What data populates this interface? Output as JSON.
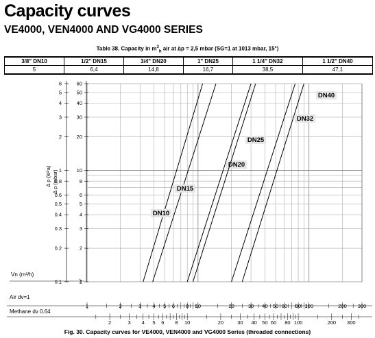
{
  "header": {
    "title": "Capacity curves",
    "subtitle": "VE4000, VEN4000 AND VG4000 SERIES"
  },
  "table": {
    "caption_prefix": "Table 38. Capacity in m",
    "caption_sup": "3",
    "caption_sub": "h",
    "caption_rest": " air at ∆p = 2,5 mbar (SG=1 at 1013 mbar, 15°)",
    "headers": [
      "3/8\" DN10",
      "1/2\" DN15",
      "3/4\" DN20",
      "1\" DN25",
      "1 1/4\" DN32",
      "1 1/2\" DN40"
    ],
    "values": [
      "5",
      "6,4",
      "14,8",
      "16,7",
      "38,5",
      "47,1"
    ]
  },
  "chart_data": {
    "type": "line",
    "x_scale": "log",
    "y_scale": "log",
    "xlim": [
      1,
      300
    ],
    "ylim": [
      0.1,
      6
    ],
    "ylabel_outer": "∆ p (kPa)",
    "ylabel_inner": "∆ p (mbar)",
    "xlabel": "Vn (m³/h)",
    "y_ticks_kpa": [
      "6",
      "5",
      "4",
      "3",
      "2",
      "1",
      "0.8",
      "0.6",
      "0.5",
      "0.4",
      "0.3",
      "0.2",
      "0.1"
    ],
    "y_ticks_mbar": [
      "60",
      "50",
      "40",
      "30",
      "20",
      "10",
      "8",
      "6",
      "5",
      "4",
      "3",
      "2",
      "1"
    ],
    "series": [
      {
        "name": "DN10",
        "points": [
          [
            3.2,
            1
          ],
          [
            11,
            60
          ]
        ]
      },
      {
        "name": "DN15",
        "points": [
          [
            3.9,
            1
          ],
          [
            14.5,
            60
          ]
        ]
      },
      {
        "name": "DN20",
        "points": [
          [
            8.0,
            1
          ],
          [
            30,
            60
          ]
        ]
      },
      {
        "name": "DN25",
        "points": [
          [
            9.0,
            1
          ],
          [
            33,
            60
          ]
        ]
      },
      {
        "name": "DN32",
        "points": [
          [
            20,
            1
          ],
          [
            75,
            60
          ]
        ]
      },
      {
        "name": "DN40",
        "points": [
          [
            25,
            1
          ],
          [
            90,
            60
          ]
        ]
      }
    ],
    "air_scale": {
      "label": "Air  dv=1",
      "tick_labels": [
        "1",
        "2",
        "3",
        "4",
        "5",
        "6",
        "8",
        "10",
        "20",
        "30",
        "40",
        "50",
        "60",
        "80",
        "100",
        "200",
        "300"
      ]
    },
    "methane_scale": {
      "label": "Methane dv 0.64",
      "tick_labels": [
        "2",
        "3",
        "4",
        "5",
        "6",
        "8",
        "10",
        "20",
        "30",
        "40",
        "50",
        "60",
        "80",
        "100",
        "200",
        "300"
      ]
    }
  },
  "caption": "Fig. 30. Capacity curves for VE4000, VEN4000 and VG4000 Series (threaded connections)"
}
